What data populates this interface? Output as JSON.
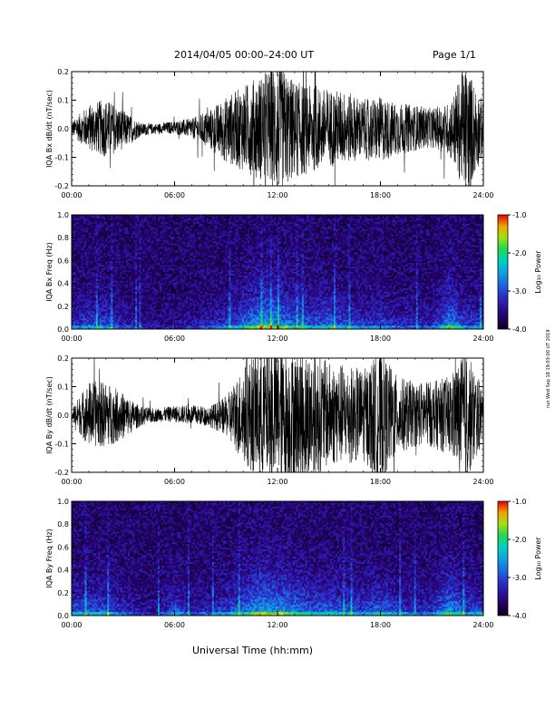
{
  "header": {
    "title": "2014/04/05  00:00–24:00 UT",
    "page": "Page 1/1"
  },
  "footer": {
    "xlabel": "Universal Time (hh:mm)",
    "stamp": "run Wed Sep 18 19:03:00 UT 2019"
  },
  "chart_data": [
    {
      "type": "line",
      "ylabel": "IQA Bx dB/dt (nT/sec)",
      "x_ticks": [
        "00:00",
        "06:00",
        "12:00",
        "18:00",
        "24:00"
      ],
      "y_ticks": [
        "0.2",
        "0.1",
        "0.0",
        "-0.1",
        "-0.2"
      ],
      "xlim": [
        0,
        24
      ],
      "ylim": [
        -0.2,
        0.2
      ],
      "series": [
        {
          "x_hours": [
            0,
            1,
            2,
            3,
            4,
            5,
            6,
            7,
            8,
            9,
            10,
            11,
            12,
            13,
            14,
            15,
            16,
            17,
            18,
            19,
            20,
            21,
            22,
            23,
            24
          ],
          "amplitude": [
            0.02,
            0.07,
            0.09,
            0.06,
            0.02,
            0.015,
            0.02,
            0.03,
            0.06,
            0.1,
            0.13,
            0.16,
            0.2,
            0.15,
            0.13,
            0.12,
            0.11,
            0.09,
            0.1,
            0.08,
            0.07,
            0.06,
            0.08,
            0.2,
            0.08
          ]
        }
      ],
      "color": "#000000"
    },
    {
      "type": "heatmap",
      "ylabel": "IQA Bx Freq (Hz)",
      "x_ticks": [
        "00:00",
        "06:00",
        "12:00",
        "18:00",
        "24:00"
      ],
      "y_ticks": [
        "1.0",
        "0.8",
        "0.6",
        "0.4",
        "0.2",
        "0.0"
      ],
      "xlim": [
        0,
        24
      ],
      "ylim": [
        0.0,
        1.0
      ],
      "colorbar": {
        "label": "Log₁₀ Power",
        "ticks": [
          "-1.0",
          "-2.0",
          "-3.0",
          "-4.0"
        ],
        "range": [
          -4.0,
          -1.0
        ]
      },
      "activity_by_hour": [
        0.35,
        0.45,
        0.45,
        0.3,
        0.15,
        0.1,
        0.15,
        0.2,
        0.3,
        0.4,
        0.55,
        0.8,
        0.75,
        0.6,
        0.5,
        0.55,
        0.45,
        0.4,
        0.45,
        0.3,
        0.3,
        0.3,
        0.7,
        0.4
      ]
    },
    {
      "type": "line",
      "ylabel": "IQA By dB/dt (nT/sec)",
      "x_ticks": [
        "00:00",
        "06:00",
        "12:00",
        "18:00",
        "24:00"
      ],
      "y_ticks": [
        "0.2",
        "0.1",
        "0.0",
        "-0.1",
        "-0.2"
      ],
      "xlim": [
        0,
        24
      ],
      "ylim": [
        -0.2,
        0.2
      ],
      "series": [
        {
          "x_hours": [
            0,
            1,
            2,
            3,
            4,
            5,
            6,
            7,
            8,
            9,
            10,
            11,
            12,
            13,
            14,
            15,
            16,
            17,
            18,
            19,
            20,
            21,
            22,
            23,
            24
          ],
          "amplitude": [
            0.02,
            0.1,
            0.1,
            0.07,
            0.03,
            0.02,
            0.025,
            0.03,
            0.03,
            0.06,
            0.15,
            0.2,
            0.2,
            0.2,
            0.2,
            0.16,
            0.15,
            0.14,
            0.2,
            0.12,
            0.1,
            0.1,
            0.12,
            0.2,
            0.08
          ]
        }
      ],
      "color": "#000000"
    },
    {
      "type": "heatmap",
      "ylabel": "IQA By Freq (Hz)",
      "x_ticks": [
        "00:00",
        "06:00",
        "12:00",
        "18:00",
        "24:00"
      ],
      "y_ticks": [
        "1.0",
        "0.8",
        "0.6",
        "0.4",
        "0.2",
        "0.0"
      ],
      "xlim": [
        0,
        24
      ],
      "ylim": [
        0.0,
        1.0
      ],
      "colorbar": {
        "label": "Log₁₀ Power",
        "ticks": [
          "-1.0",
          "-2.0",
          "-3.0",
          "-4.0"
        ],
        "range": [
          -4.0,
          -1.0
        ]
      },
      "activity_by_hour": [
        0.45,
        0.5,
        0.5,
        0.35,
        0.2,
        0.15,
        0.5,
        0.25,
        0.3,
        0.45,
        0.6,
        0.8,
        0.75,
        0.65,
        0.55,
        0.55,
        0.5,
        0.45,
        0.55,
        0.4,
        0.35,
        0.35,
        0.75,
        0.45
      ]
    }
  ]
}
